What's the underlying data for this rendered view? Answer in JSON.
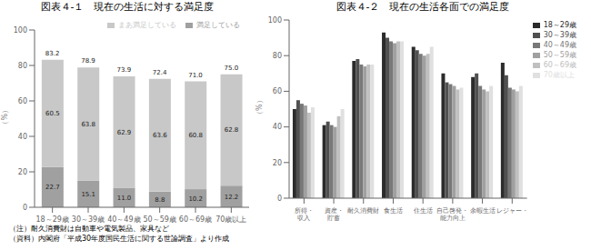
{
  "chart_data": [
    {
      "type": "bar",
      "stacked": true,
      "title": "図表４-１　現在の生活に対する満足度",
      "categories": [
        "18～29歳",
        "30～39歳",
        "40～49歳",
        "50～59歳",
        "60～69歳",
        "70歳以上"
      ],
      "series": [
        {
          "name": "満足している",
          "color": "#a0a0a0",
          "values": [
            22.7,
            15.1,
            11.0,
            8.8,
            10.2,
            12.2
          ],
          "value_labels": [
            "22.7",
            "15.1",
            "11.0",
            "8.8",
            "10.2",
            "12.2"
          ]
        },
        {
          "name": "まあ満足している",
          "color": "#c8c8c8",
          "values": [
            60.5,
            63.8,
            62.9,
            63.6,
            60.8,
            62.8
          ]
        }
      ],
      "totals": [
        83.2,
        78.9,
        73.9,
        72.4,
        71.0,
        75.0
      ],
      "total_labels": [
        "83.2",
        "78.9",
        "73.9",
        "72.4",
        "71.0",
        "75.0"
      ],
      "ylabel": "（%）",
      "ylim": [
        0,
        100
      ],
      "yticks": [
        0,
        20,
        40,
        60,
        80,
        100
      ],
      "data_labels": true,
      "legend": "top",
      "annotations": [
        "（注）耐久消費財は自動車や電気製品、家具など",
        "（資料）内閣府「平成30年度国民生活に関する世論調査」より作成"
      ]
    },
    {
      "type": "bar",
      "title": "図表４-２　現在の生活各面での満足度",
      "categories": [
        "所得・\n収入",
        "資産・\n貯蓄",
        "耐久消費財",
        "食生活",
        "住生活",
        "自己啓発・\n能力向上",
        "余暇生活",
        "レジャー・"
      ],
      "series": [
        {
          "name": "18～29歳",
          "color": "#2b2b2b",
          "values": [
            50,
            41,
            77,
            93,
            85,
            70,
            68,
            76
          ]
        },
        {
          "name": "30～39歳",
          "color": "#505050",
          "values": [
            55,
            43,
            78,
            90,
            83,
            65,
            70,
            69
          ]
        },
        {
          "name": "40～49歳",
          "color": "#787878",
          "values": [
            53,
            41,
            75,
            88,
            81,
            64,
            63,
            62
          ]
        },
        {
          "name": "50～59歳",
          "color": "#a0a0a0",
          "values": [
            52,
            40,
            74,
            87,
            80,
            63,
            61,
            61
          ]
        },
        {
          "name": "60～69歳",
          "color": "#c0c0c0",
          "values": [
            48,
            46,
            75,
            88,
            81,
            61,
            60,
            60
          ]
        },
        {
          "name": "70歳以上",
          "color": "#e0e0e0",
          "values": [
            51,
            50,
            75,
            88,
            85,
            62,
            63,
            63
          ]
        }
      ],
      "ylabel": "（%）",
      "ylim": [
        0,
        100
      ],
      "yticks": [
        0,
        20,
        40,
        60,
        80,
        100
      ],
      "legend": "right"
    }
  ]
}
